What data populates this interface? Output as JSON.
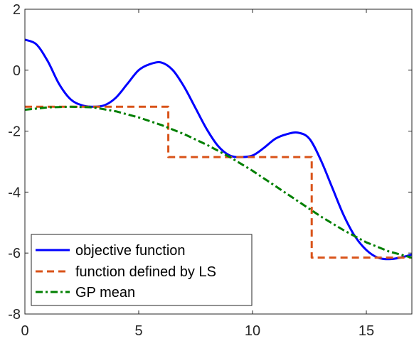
{
  "chart_data": {
    "type": "line",
    "xlim": [
      0,
      17
    ],
    "ylim": [
      -8,
      2
    ],
    "x_ticks": [
      0,
      5,
      10,
      15
    ],
    "y_ticks": [
      2,
      0,
      -2,
      -4,
      -6,
      -8
    ],
    "x_tick_labels": [
      "0",
      "5",
      "10",
      "15"
    ],
    "y_tick_labels": [
      "2",
      "0",
      "-2",
      "-4",
      "-6",
      "-8"
    ],
    "grid": false,
    "legend_position": "bottom-left",
    "series": [
      {
        "name": "objective function",
        "color": "#0000ff",
        "style": "solid",
        "x": [
          0,
          0.5,
          1,
          1.5,
          2,
          2.5,
          3,
          3.5,
          4,
          4.5,
          5,
          5.5,
          6,
          6.5,
          7,
          7.5,
          8,
          8.5,
          9,
          9.5,
          10,
          10.5,
          11,
          11.5,
          12,
          12.5,
          13,
          13.5,
          14,
          14.5,
          15,
          15.5,
          16,
          16.5,
          17
        ],
        "y": [
          1.0,
          0.85,
          0.3,
          -0.45,
          -0.95,
          -1.15,
          -1.2,
          -1.15,
          -0.9,
          -0.45,
          0.0,
          0.2,
          0.25,
          0.0,
          -0.55,
          -1.25,
          -1.95,
          -2.5,
          -2.8,
          -2.85,
          -2.8,
          -2.55,
          -2.25,
          -2.1,
          -2.05,
          -2.25,
          -2.95,
          -3.85,
          -4.75,
          -5.45,
          -5.9,
          -6.15,
          -6.2,
          -6.15,
          -6.05
        ]
      },
      {
        "name": "function defined by LS",
        "color": "#d95319",
        "style": "dashed",
        "x": [
          0,
          6.3,
          6.3,
          12.6,
          12.6,
          17
        ],
        "y": [
          -1.2,
          -1.2,
          -2.85,
          -2.85,
          -6.15,
          -6.15
        ]
      },
      {
        "name": "GP mean",
        "color": "#007f00",
        "style": "dashdot",
        "x": [
          0,
          1,
          2,
          3,
          4,
          5,
          6,
          7,
          8,
          9,
          10,
          11,
          12,
          13,
          14,
          15,
          16,
          17
        ],
        "y": [
          -1.3,
          -1.22,
          -1.2,
          -1.22,
          -1.35,
          -1.55,
          -1.8,
          -2.1,
          -2.45,
          -2.85,
          -3.3,
          -3.8,
          -4.3,
          -4.8,
          -5.25,
          -5.65,
          -5.95,
          -6.15
        ]
      }
    ]
  }
}
